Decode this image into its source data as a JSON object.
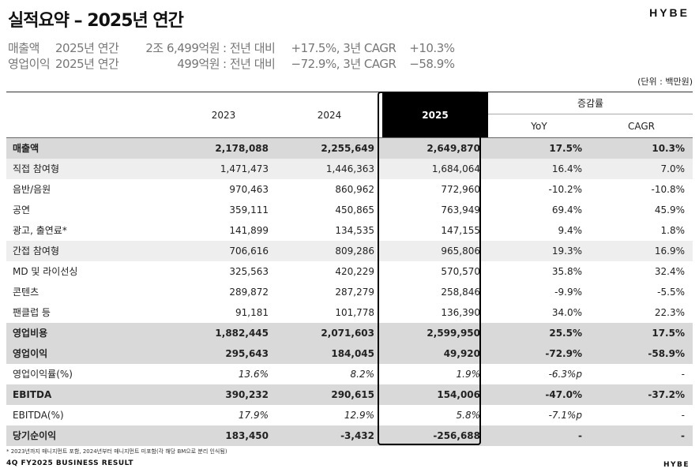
{
  "header": {
    "title": "실적요약 – 2025년 연간",
    "logo": "HYBE"
  },
  "summary": [
    {
      "label": "매출액",
      "period": "2025년 연간",
      "value": "2조 6,499억원",
      "sep": ": 전년 대비",
      "growth": "+17.5%,",
      "cagr_label": "3년 CAGR",
      "cagr": "+10.3%"
    },
    {
      "label": "영업이익",
      "period": "2025년 연간",
      "value": "499억원",
      "sep": ": 전년 대비",
      "growth": "−72.9%,",
      "cagr_label": "3년 CAGR",
      "cagr": "−58.9%"
    }
  ],
  "unit": "(단위 : 백만원)",
  "table": {
    "headers": {
      "y2023": "2023",
      "y2024": "2024",
      "y2025": "2025",
      "change": "증감률",
      "yoy": "YoY",
      "cagr": "CAGR"
    },
    "rows": [
      {
        "label": "매출액",
        "v2023": "2,178,088",
        "v2024": "2,255,649",
        "v2025": "2,649,870",
        "yoy": "17.5%",
        "cagr": "10.3%"
      },
      {
        "label": "직접 참여형",
        "v2023": "1,471,473",
        "v2024": "1,446,363",
        "v2025": "1,684,064",
        "yoy": "16.4%",
        "cagr": "7.0%"
      },
      {
        "label": "음반/음원",
        "v2023": "970,463",
        "v2024": "860,962",
        "v2025": "772,960",
        "yoy": "-10.2%",
        "cagr": "-10.8%"
      },
      {
        "label": "공연",
        "v2023": "359,111",
        "v2024": "450,865",
        "v2025": "763,949",
        "yoy": "69.4%",
        "cagr": "45.9%"
      },
      {
        "label": "광고, 출연료*",
        "v2023": "141,899",
        "v2024": "134,535",
        "v2025": "147,155",
        "yoy": "9.4%",
        "cagr": "1.8%"
      },
      {
        "label": "간접 참여형",
        "v2023": "706,616",
        "v2024": "809,286",
        "v2025": "965,806",
        "yoy": "19.3%",
        "cagr": "16.9%"
      },
      {
        "label": "MD 및 라이선싱",
        "v2023": "325,563",
        "v2024": "420,229",
        "v2025": "570,570",
        "yoy": "35.8%",
        "cagr": "32.4%"
      },
      {
        "label": "콘텐츠",
        "v2023": "289,872",
        "v2024": "287,279",
        "v2025": "258,846",
        "yoy": "-9.9%",
        "cagr": "-5.5%"
      },
      {
        "label": "팬클럽 등",
        "v2023": "91,181",
        "v2024": "101,778",
        "v2025": "136,390",
        "yoy": "34.0%",
        "cagr": "22.3%"
      },
      {
        "label": "영업비용",
        "v2023": "1,882,445",
        "v2024": "2,071,603",
        "v2025": "2,599,950",
        "yoy": "25.5%",
        "cagr": "17.5%"
      },
      {
        "label": "영업이익",
        "v2023": "295,643",
        "v2024": "184,045",
        "v2025": "49,920",
        "yoy": "-72.9%",
        "cagr": "-58.9%"
      },
      {
        "label": "영업이익률(%)",
        "v2023": "13.6%",
        "v2024": "8.2%",
        "v2025": "1.9%",
        "yoy": "-6.3%p",
        "cagr": "-"
      },
      {
        "label": "EBITDA",
        "v2023": "390,232",
        "v2024": "290,615",
        "v2025": "154,006",
        "yoy": "-47.0%",
        "cagr": "-37.2%"
      },
      {
        "label": "EBITDA(%)",
        "v2023": "17.9%",
        "v2024": "12.9%",
        "v2025": "5.8%",
        "yoy": "-7.1%p",
        "cagr": "-"
      },
      {
        "label": "당기순이익",
        "v2023": "183,450",
        "v2024": "-3,432",
        "v2025": "-256,688",
        "yoy": "-",
        "cagr": "-"
      }
    ]
  },
  "footnote": "* 2023년까지 매니지먼트 포함, 2024년부터 매니지먼트 미포함(각 해당 BM으로 분리 인식됨)",
  "footer": {
    "report": "4Q FY2025 BUSINESS RESULT",
    "logo": "HYBE"
  }
}
